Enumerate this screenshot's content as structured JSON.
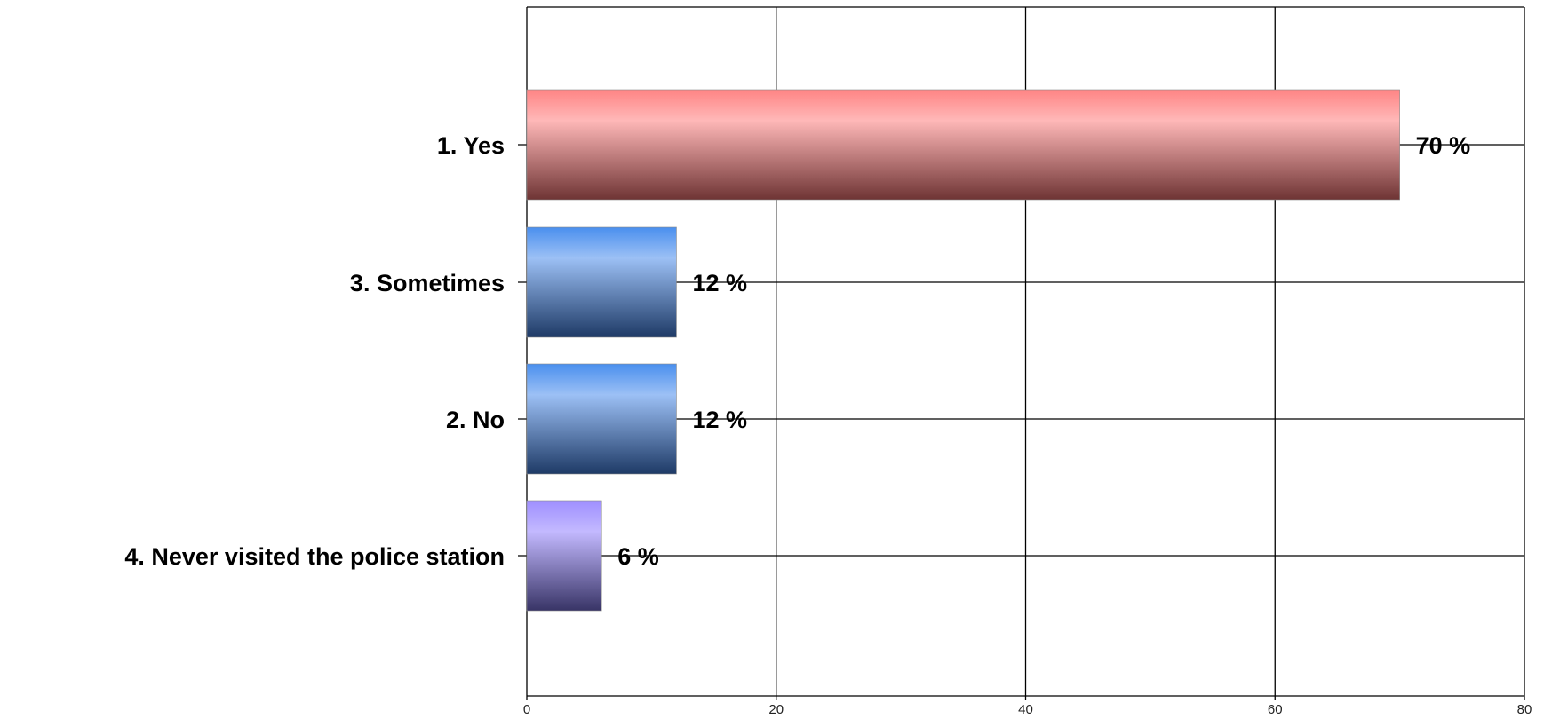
{
  "chart_data": {
    "type": "bar",
    "orientation": "horizontal",
    "title": "",
    "xlabel": "",
    "ylabel": "",
    "categories": [
      "1. Yes",
      "3. Sometimes",
      "2. No",
      "4. Never visited the police station"
    ],
    "values": [
      70,
      12,
      12,
      6
    ],
    "value_labels": [
      "70 %",
      "12 %",
      "12 %",
      "6 %"
    ],
    "xlim": [
      0,
      80
    ],
    "xticks": [
      0,
      20,
      40,
      60,
      80
    ],
    "xtick_labels": [
      "0",
      "20",
      "40",
      "60",
      "80"
    ],
    "grid": true,
    "legend": "none",
    "colors": [
      {
        "top": "#ff8484",
        "mid": "#ffb8b8",
        "bottom": "#6e3434"
      },
      {
        "top": "#4a8fee",
        "mid": "#9cc0f5",
        "bottom": "#1e3a66"
      },
      {
        "top": "#4a8fee",
        "mid": "#9cc0f5",
        "bottom": "#1e3a66"
      },
      {
        "top": "#9f8fff",
        "mid": "#c3b9ff",
        "bottom": "#383466"
      }
    ]
  }
}
